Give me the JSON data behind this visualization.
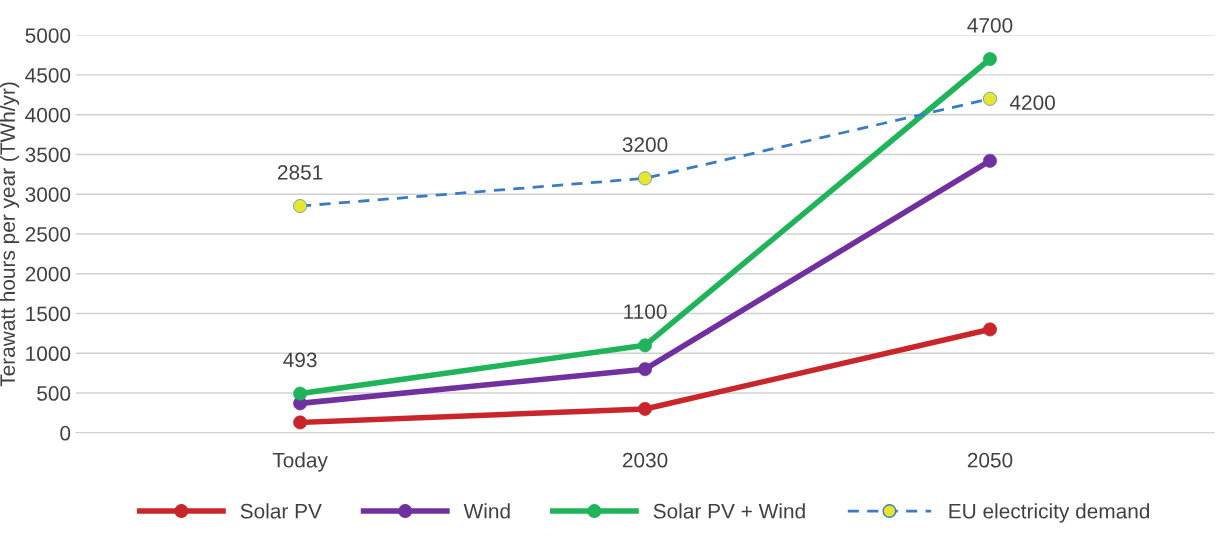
{
  "chart_data": {
    "type": "line",
    "ylabel": "Terawatt hours per year (TWh/yr)",
    "categories": [
      "Today",
      "2030",
      "2050"
    ],
    "series": [
      {
        "name": "Solar PV",
        "color": "#c8262b",
        "values": [
          130,
          300,
          1300
        ]
      },
      {
        "name": "Wind",
        "color": "#7030a0",
        "values": [
          370,
          800,
          3420
        ]
      },
      {
        "name": "Solar PV + Wind",
        "color": "#1fb45a",
        "values": [
          493,
          1100,
          4700
        ],
        "value_labels": [
          "493",
          "1100",
          "4700"
        ]
      },
      {
        "name": "EU electricity demand",
        "color": "#3a7cc4",
        "colors": [
          "#e6e62e",
          "#e6e62e",
          "#e6e62e"
        ],
        "line_style": "dashed",
        "values": [
          2851,
          3200,
          4200
        ],
        "value_labels": [
          "2851",
          "3200",
          "4200"
        ]
      }
    ],
    "ylim": [
      0,
      5000
    ],
    "yticks": [
      0,
      500,
      1000,
      1500,
      2000,
      2500,
      3000,
      3500,
      4000,
      4500,
      5000
    ],
    "grid": "y",
    "legend": "bottom",
    "marker": "circle",
    "line_style": "solid"
  }
}
